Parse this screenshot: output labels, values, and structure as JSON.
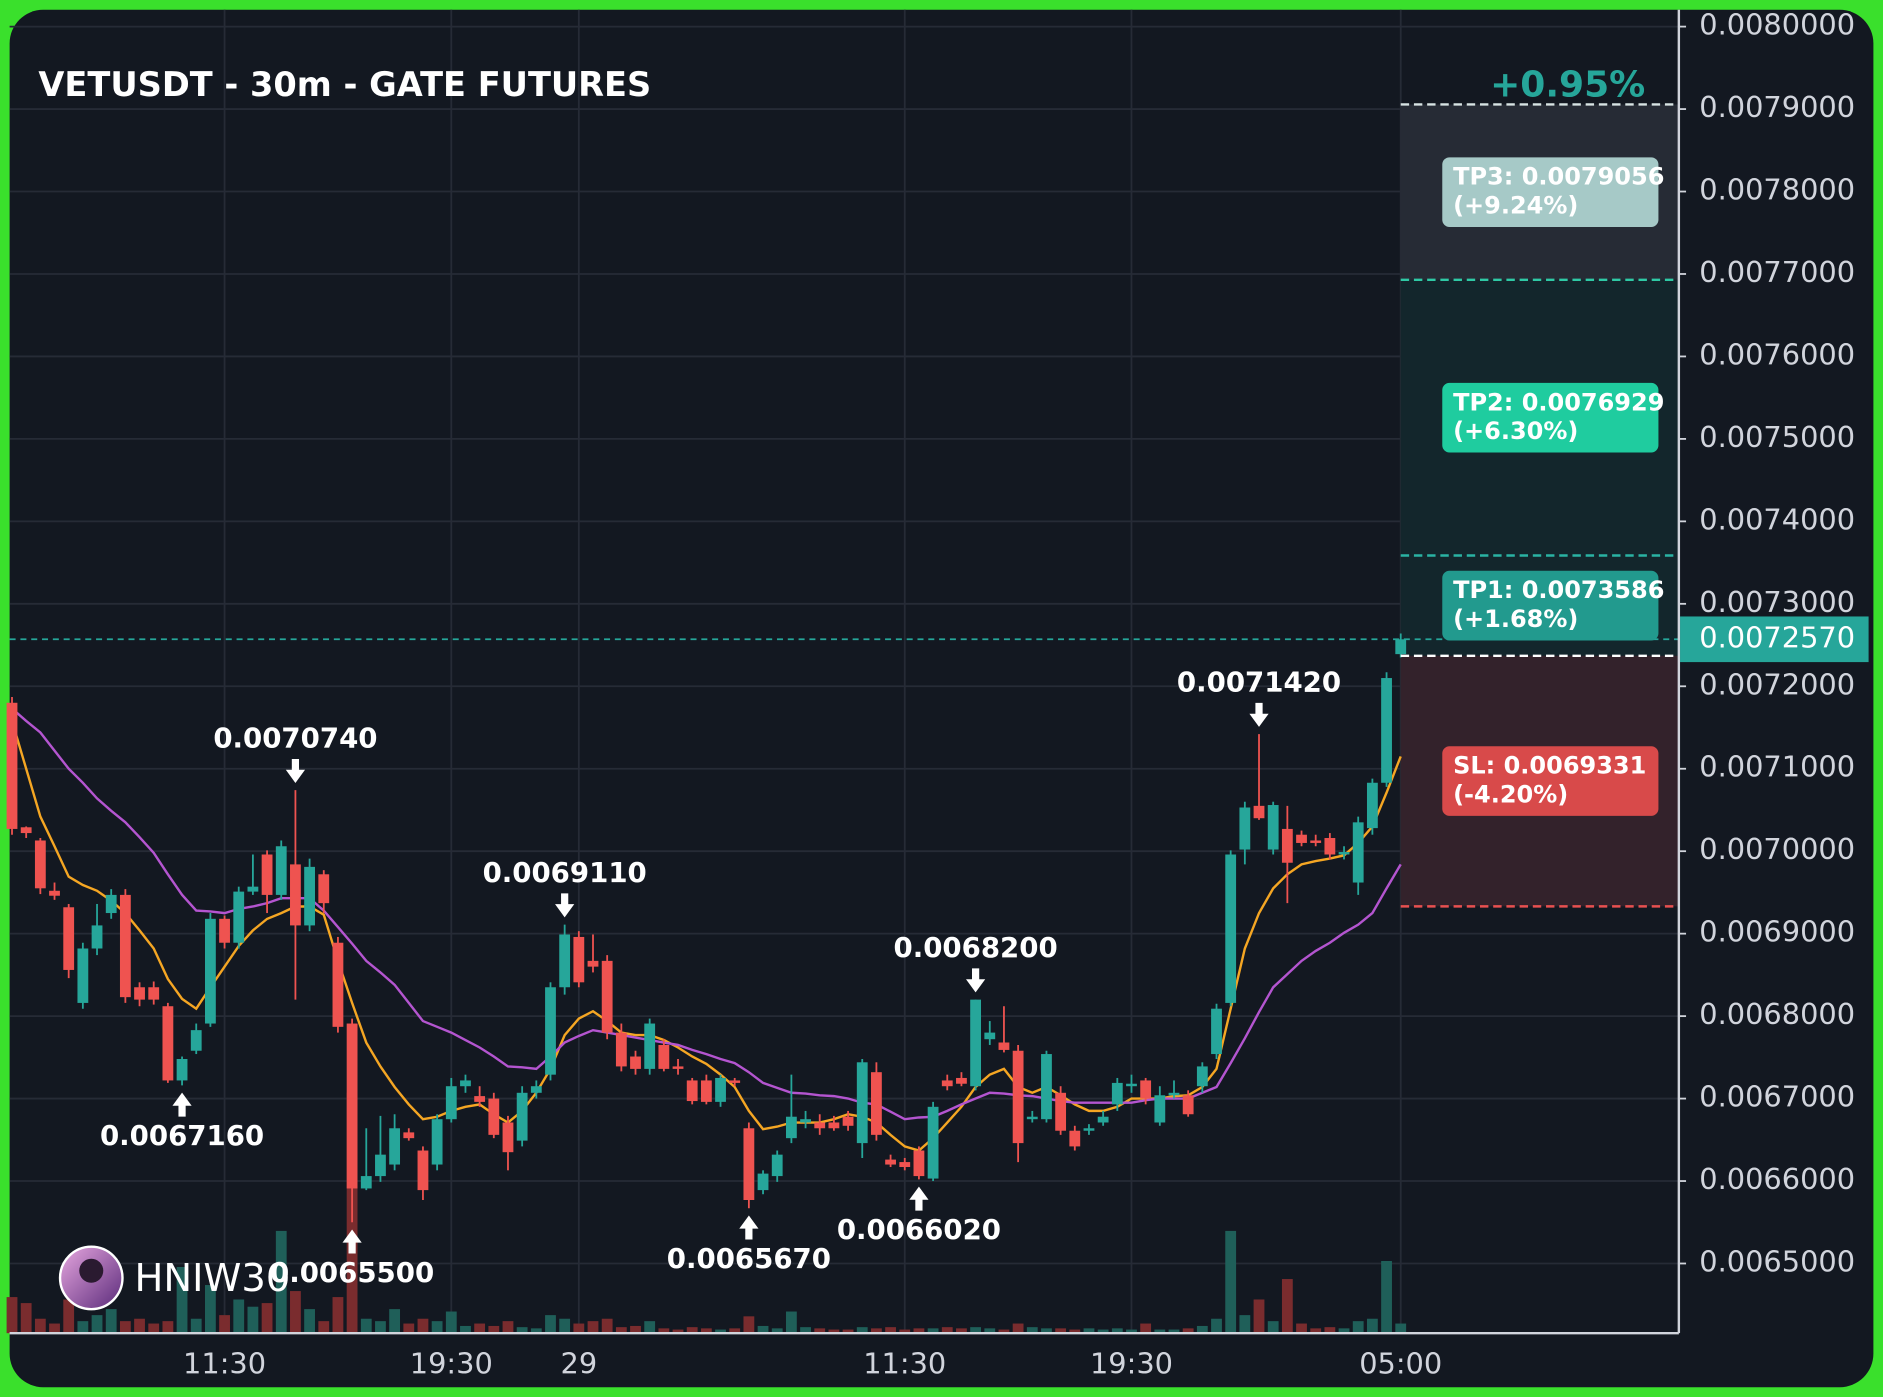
{
  "chart_data": {
    "type": "candlestick",
    "title": "VETUSDT - 30m - GATE FUTURES",
    "watermark": "HNIW30",
    "categories": [
      null,
      null,
      null,
      null,
      null,
      null,
      null,
      null,
      null,
      null,
      null,
      null,
      null,
      null,
      null,
      "11:30",
      null,
      null,
      null,
      null,
      null,
      null,
      null,
      null,
      null,
      null,
      null,
      null,
      null,
      null,
      null,
      "19:30",
      null,
      null,
      null,
      null,
      null,
      null,
      null,
      null,
      "29",
      null,
      null,
      null,
      null,
      null,
      null,
      null,
      null,
      null,
      null,
      null,
      null,
      null,
      null,
      null,
      null,
      null,
      null,
      null,
      null,
      null,
      null,
      "11:30",
      null,
      null,
      null,
      null,
      null,
      null,
      null,
      null,
      null,
      null,
      null,
      null,
      null,
      null,
      null,
      "19:30",
      null,
      null,
      null,
      null,
      null,
      null,
      null,
      null,
      null,
      null,
      null,
      null,
      null,
      null,
      null,
      null,
      null,
      null,
      "05:00"
    ],
    "open": [
      0.00718,
      0.007029,
      0.007013,
      0.006952,
      0.006932,
      0.006816,
      0.006882,
      0.006925,
      0.006947,
      0.006835,
      0.006835,
      0.006812,
      0.006722,
      0.006758,
      0.006791,
      0.006918,
      0.006889,
      0.006951,
      0.006996,
      0.006947,
      0.006984,
      0.00691,
      0.006972,
      0.006889,
      0.006791,
      0.006591,
      0.006606,
      0.00662,
      0.006659,
      0.006637,
      0.00662,
      0.006675,
      0.006715,
      0.006703,
      0.0067,
      0.006671,
      0.006649,
      0.006707,
      0.006729,
      0.006835,
      0.006896,
      0.006867,
      0.006867,
      0.00678,
      0.006751,
      0.006736,
      0.006765,
      0.006739,
      0.006722,
      0.006722,
      0.006696,
      0.006722,
      0.006664,
      0.006589,
      0.006606,
      0.006652,
      0.006671,
      0.006671,
      0.006671,
      0.006678,
      0.006646,
      0.006732,
      0.006626,
      0.006623,
      0.006637,
      0.006603,
      0.006722,
      0.006725,
      0.006715,
      0.006772,
      0.006768,
      0.006758,
      0.006675,
      0.006675,
      0.006707,
      0.006661,
      0.006661,
      0.006671,
      0.006693,
      0.006715,
      0.006722,
      0.006671,
      0.006704,
      0.006704,
      0.006715,
      0.006754,
      0.006816,
      0.007002,
      0.007055,
      0.007002,
      0.007027,
      0.00702,
      0.007013,
      0.007016,
      0.006996,
      0.006962,
      0.007028,
      0.007083,
      0.007239
    ],
    "high": [
      0.007187,
      0.00703,
      0.007016,
      0.006962,
      0.006936,
      0.006889,
      0.006936,
      0.006954,
      0.006954,
      0.006841,
      0.006842,
      0.006816,
      0.006751,
      0.006791,
      0.006925,
      0.006922,
      0.006957,
      0.006996,
      0.007001,
      0.007013,
      0.007074,
      0.006991,
      0.006977,
      0.006896,
      0.006797,
      0.006664,
      0.006679,
      0.006681,
      0.006664,
      0.006642,
      0.006681,
      0.006725,
      0.006729,
      0.006715,
      0.006707,
      0.006679,
      0.006715,
      0.006722,
      0.006841,
      0.006911,
      0.006903,
      0.006899,
      0.006874,
      0.006791,
      0.006758,
      0.006797,
      0.006772,
      0.006748,
      0.006725,
      0.006729,
      0.006729,
      0.006725,
      0.006671,
      0.006613,
      0.006637,
      0.006729,
      0.006685,
      0.006681,
      0.006679,
      0.006685,
      0.006748,
      0.006744,
      0.006632,
      0.006628,
      0.006642,
      0.006696,
      0.006729,
      0.006732,
      0.00682,
      0.006794,
      0.006812,
      0.006765,
      0.006685,
      0.006758,
      0.006715,
      0.006667,
      0.006669,
      0.006685,
      0.006725,
      0.006729,
      0.006725,
      0.006715,
      0.006722,
      0.00671,
      0.006744,
      0.006815,
      0.007001,
      0.00706,
      0.007142,
      0.00706,
      0.007055,
      0.007025,
      0.00702,
      0.007022,
      0.007006,
      0.007042,
      0.007088,
      0.007217,
      0.007264
    ],
    "low": [
      0.00702,
      0.007016,
      0.006948,
      0.006941,
      0.006846,
      0.006809,
      0.006874,
      0.006918,
      0.006816,
      0.006812,
      0.006814,
      0.006719,
      0.006716,
      0.006754,
      0.006787,
      0.006882,
      0.006882,
      0.006947,
      0.006925,
      0.006941,
      0.00682,
      0.006903,
      0.006925,
      0.00678,
      0.00655,
      0.006589,
      0.006599,
      0.006613,
      0.006649,
      0.006577,
      0.006613,
      0.006671,
      0.006707,
      0.00669,
      0.006652,
      0.006613,
      0.006642,
      0.0067,
      0.006722,
      0.006826,
      0.006835,
      0.006853,
      0.006772,
      0.006733,
      0.006729,
      0.006729,
      0.006733,
      0.006729,
      0.006693,
      0.006693,
      0.00669,
      0.006715,
      0.006567,
      0.006584,
      0.006599,
      0.006646,
      0.006664,
      0.006656,
      0.006661,
      0.006661,
      0.006628,
      0.006649,
      0.006617,
      0.006613,
      0.006602,
      0.0066,
      0.00671,
      0.006715,
      0.00671,
      0.006765,
      0.006756,
      0.006623,
      0.006671,
      0.006671,
      0.006656,
      0.006637,
      0.006656,
      0.006667,
      0.006685,
      0.006707,
      0.006693,
      0.006667,
      0.0067,
      0.006678,
      0.006707,
      0.006748,
      0.006812,
      0.006984,
      0.007038,
      0.006996,
      0.006937,
      0.007006,
      0.007006,
      0.00699,
      0.00699,
      0.006947,
      0.00702,
      0.007078,
      0.007235
    ],
    "close": [
      0.007027,
      0.007022,
      0.006955,
      0.006946,
      0.006856,
      0.006882,
      0.00691,
      0.006947,
      0.006823,
      0.00682,
      0.00682,
      0.006722,
      0.006748,
      0.006783,
      0.006918,
      0.006889,
      0.006951,
      0.006957,
      0.006947,
      0.007006,
      0.00691,
      0.006981,
      0.006937,
      0.006787,
      0.006591,
      0.006606,
      0.006632,
      0.006664,
      0.006652,
      0.006589,
      0.006675,
      0.006715,
      0.006722,
      0.006696,
      0.006656,
      0.006635,
      0.006707,
      0.006715,
      0.006835,
      0.006899,
      0.006841,
      0.00686,
      0.00678,
      0.006739,
      0.006736,
      0.006791,
      0.006736,
      0.006736,
      0.006697,
      0.006696,
      0.006725,
      0.006719,
      0.006577,
      0.006609,
      0.006632,
      0.006678,
      0.006675,
      0.006664,
      0.006664,
      0.006667,
      0.006744,
      0.006656,
      0.00662,
      0.006617,
      0.006606,
      0.00669,
      0.006715,
      0.006718,
      0.00682,
      0.00678,
      0.006759,
      0.006646,
      0.006678,
      0.006754,
      0.006661,
      0.006642,
      0.006664,
      0.006678,
      0.006719,
      0.006718,
      0.0067,
      0.006704,
      0.006707,
      0.006681,
      0.006739,
      0.006809,
      0.006996,
      0.007053,
      0.00704,
      0.007056,
      0.006986,
      0.00701,
      0.00701,
      0.006996,
      0.006999,
      0.007035,
      0.007083,
      0.00721,
      0.007257
    ],
    "up_color": "#26a69a",
    "down_color": "#ef5350",
    "volume": [
      30,
      25,
      12,
      8,
      28,
      10,
      15,
      20,
      10,
      12,
      8,
      10,
      55,
      12,
      40,
      15,
      28,
      22,
      25,
      85,
      35,
      20,
      10,
      30,
      200,
      12,
      10,
      20,
      8,
      12,
      10,
      18,
      6,
      8,
      6,
      10,
      5,
      4,
      15,
      12,
      8,
      10,
      12,
      5,
      6,
      10,
      4,
      3,
      5,
      4,
      3,
      4,
      14,
      6,
      4,
      18,
      5,
      4,
      3,
      3,
      5,
      4,
      5,
      3,
      4,
      4,
      5,
      4,
      5,
      4,
      3,
      8,
      5,
      4,
      4,
      3,
      4,
      3,
      4,
      3,
      8,
      3,
      3,
      4,
      6,
      12,
      85,
      15,
      28,
      10,
      45,
      8,
      4,
      5,
      4,
      10,
      12,
      60,
      8
    ],
    "volume_lim": [
      0,
      1100
    ],
    "volume_up_color": "#1f5f59",
    "volume_down_color": "#7a2c2e",
    "lines": [
      {
        "color": "#f5a623",
        "values": [
          0.007158,
          0.0071,
          0.007042,
          0.007006,
          0.006969,
          0.006959,
          0.006952,
          0.00694,
          0.006925,
          0.006904,
          0.006882,
          0.006845,
          0.006821,
          0.006809,
          0.006835,
          0.00686,
          0.006885,
          0.006904,
          0.006918,
          0.006925,
          0.006933,
          0.006933,
          0.006923,
          0.006867,
          0.006816,
          0.006768,
          0.006739,
          0.006714,
          0.006693,
          0.006675,
          0.006678,
          0.006685,
          0.00669,
          0.006693,
          0.006681,
          0.006671,
          0.006685,
          0.006707,
          0.006736,
          0.006777,
          0.006797,
          0.006806,
          0.006794,
          0.00678,
          0.006777,
          0.006777,
          0.006771,
          0.006762,
          0.006751,
          0.006742,
          0.006729,
          0.006714,
          0.006685,
          0.006663,
          0.006666,
          0.006671,
          0.006671,
          0.006671,
          0.006675,
          0.006681,
          0.006678,
          0.006671,
          0.006656,
          0.006642,
          0.006637,
          0.006652,
          0.006671,
          0.00669,
          0.006714,
          0.006729,
          0.006736,
          0.006714,
          0.006707,
          0.006714,
          0.006704,
          0.006693,
          0.006685,
          0.006685,
          0.00669,
          0.0067,
          0.0067,
          0.0067,
          0.006703,
          0.006704,
          0.006714,
          0.006736,
          0.006809,
          0.006882,
          0.006925,
          0.006955,
          0.006972,
          0.006984,
          0.006988,
          0.006991,
          0.006995,
          0.00701,
          0.00703,
          0.007071,
          0.007115
        ]
      },
      {
        "color": "#b455d0",
        "values": [
          0.007173,
          0.007158,
          0.007144,
          0.007122,
          0.0071,
          0.007083,
          0.007064,
          0.007049,
          0.007035,
          0.007017,
          0.006998,
          0.006972,
          0.006947,
          0.006928,
          0.006927,
          0.006925,
          0.00693,
          0.006933,
          0.006937,
          0.006943,
          0.006943,
          0.006943,
          0.006928,
          0.006908,
          0.006888,
          0.006867,
          0.006853,
          0.006838,
          0.006816,
          0.006794,
          0.006787,
          0.00678,
          0.006771,
          0.006762,
          0.006751,
          0.006739,
          0.006738,
          0.006736,
          0.006751,
          0.006768,
          0.006776,
          0.006783,
          0.00678,
          0.006777,
          0.006774,
          0.006771,
          0.006768,
          0.006765,
          0.006759,
          0.006754,
          0.006748,
          0.006743,
          0.006732,
          0.006719,
          0.006713,
          0.006707,
          0.006706,
          0.006704,
          0.006703,
          0.0067,
          0.006695,
          0.006693,
          0.006684,
          0.006675,
          0.006677,
          0.006678,
          0.006685,
          0.006693,
          0.0067,
          0.006707,
          0.006706,
          0.006704,
          0.006703,
          0.0067,
          0.006697,
          0.006695,
          0.006695,
          0.006695,
          0.006695,
          0.006695,
          0.006698,
          0.0067,
          0.0067,
          0.0067,
          0.006707,
          0.006714,
          0.006743,
          0.006773,
          0.006805,
          0.006835,
          0.006851,
          0.006867,
          0.006879,
          0.006889,
          0.006901,
          0.006911,
          0.006925,
          0.006955,
          0.006984
        ]
      }
    ],
    "ylim": [
      0.0064155,
      0.0080204
    ],
    "yticks": [
      {
        "value": 0.0065,
        "label": "0.0065000"
      },
      {
        "value": 0.0066,
        "label": "0.0066000"
      },
      {
        "value": 0.0067,
        "label": "0.0067000"
      },
      {
        "value": 0.0068,
        "label": "0.0068000"
      },
      {
        "value": 0.0069,
        "label": "0.0069000"
      },
      {
        "value": 0.007,
        "label": "0.0070000"
      },
      {
        "value": 0.0071,
        "label": "0.0071000"
      },
      {
        "value": 0.0072,
        "label": "0.0072000"
      },
      {
        "value": 0.0073,
        "label": "0.0073000"
      },
      {
        "value": 0.0074,
        "label": "0.0074000"
      },
      {
        "value": 0.0075,
        "label": "0.0075000"
      },
      {
        "value": 0.0076,
        "label": "0.0076000"
      },
      {
        "value": 0.0077,
        "label": "0.0077000"
      },
      {
        "value": 0.0078,
        "label": "0.0078000"
      },
      {
        "value": 0.0079,
        "label": "0.0079000"
      },
      {
        "value": 0.008,
        "label": "0.0080000"
      }
    ],
    "grid": true,
    "last_price": {
      "value": 0.007257,
      "label": "0.0072570"
    },
    "annotations": [
      {
        "value": 0.007074,
        "label": "0.0070740"
      },
      {
        "value": 0.006716,
        "label": "0.0067160"
      },
      {
        "value": 0.00655,
        "label": "0.0065500"
      },
      {
        "value": 0.006911,
        "label": "0.0069110"
      },
      {
        "value": 0.006567,
        "label": "0.0065670"
      },
      {
        "value": 0.006602,
        "label": "0.0066020"
      },
      {
        "value": 0.00682,
        "label": "0.0068200"
      },
      {
        "value": 0.007142,
        "label": "0.0071420"
      }
    ],
    "trade": {
      "change": "+0.95%",
      "entry": 0.007237,
      "levels": [
        {
          "value": 0.0079056,
          "label": "TP3: 0.0079056",
          "change": "(+9.24%)",
          "color": "#a6c9c7",
          "line_color": "#d8e4e4",
          "zone_color": "#262b35"
        },
        {
          "value": 0.0076929,
          "label": "TP2: 0.0076929",
          "change": "(+6.30%)",
          "color": "#1fcc9f",
          "line_color": "#2fc9a5",
          "zone_color": "#13262c"
        },
        {
          "value": 0.0073586,
          "label": "TP1: 0.0073586",
          "change": "(+1.68%)",
          "color": "#229a8e",
          "line_color": "#2ab3a3",
          "zone_color": "#13262c"
        },
        {
          "value": 0.0069331,
          "label": "SL: 0.0069331",
          "change": "(-4.20%)",
          "color": "#d84a4a",
          "line_color": "#e85050",
          "zone_color": "#33222b"
        }
      ]
    }
  }
}
